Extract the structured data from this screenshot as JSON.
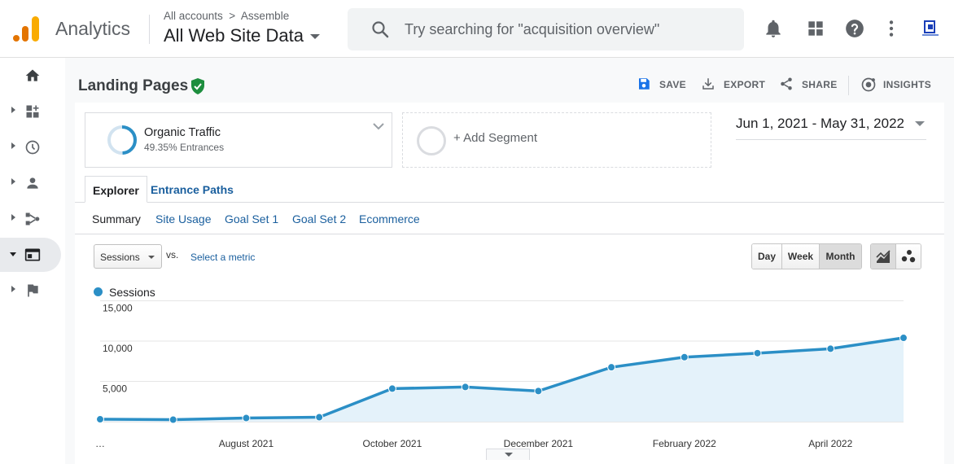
{
  "header": {
    "app_name": "Analytics",
    "breadcrumb": "All accounts  >  Assemble",
    "property_name": "All Web Site Data",
    "search_placeholder": "Try searching for \"acquisition overview\"",
    "icons": [
      "notifications-icon",
      "apps-grid-icon",
      "help-icon",
      "more-vert-icon",
      "account-avatar-icon"
    ]
  },
  "sidebar": {
    "items": [
      {
        "name": "home",
        "icon": "home-icon"
      },
      {
        "name": "customization",
        "icon": "dashboard-add-icon"
      },
      {
        "name": "realtime",
        "icon": "clock-icon"
      },
      {
        "name": "audience",
        "icon": "person-icon"
      },
      {
        "name": "acquisition",
        "icon": "acquisition-icon"
      },
      {
        "name": "behavior",
        "icon": "behavior-window-icon",
        "active": true
      },
      {
        "name": "conversions",
        "icon": "flag-icon"
      }
    ]
  },
  "page": {
    "title": "Landing Pages",
    "actions": [
      {
        "label": "SAVE",
        "icon": "save-icon"
      },
      {
        "label": "EXPORT",
        "icon": "export-icon"
      },
      {
        "label": "SHARE",
        "icon": "share-icon"
      },
      {
        "label": "INSIGHTS",
        "icon": "insights-icon"
      }
    ]
  },
  "segments": {
    "active": {
      "name": "Organic Traffic",
      "detail": "49.35% Entrances"
    },
    "add_label": "+ Add Segment"
  },
  "date_range": "Jun 1, 2021 - May 31, 2022",
  "tabs": [
    {
      "label": "Explorer",
      "active": true
    },
    {
      "label": "Entrance Paths",
      "active": false
    }
  ],
  "subtabs": [
    {
      "label": "Summary",
      "current": true
    },
    {
      "label": "Site Usage",
      "current": false
    },
    {
      "label": "Goal Set 1",
      "current": false
    },
    {
      "label": "Goal Set 2",
      "current": false
    },
    {
      "label": "Ecommerce",
      "current": false
    }
  ],
  "controls": {
    "metric_selected": "Sessions",
    "vs_label": "vs.",
    "select_metric_link": "Select a metric",
    "granularity": [
      {
        "label": "Day",
        "selected": false
      },
      {
        "label": "Week",
        "selected": false
      },
      {
        "label": "Month",
        "selected": true
      }
    ]
  },
  "chart_data": {
    "type": "area",
    "series": [
      {
        "name": "Sessions",
        "color": "#2b8fc6",
        "values": [
          300,
          250,
          450,
          550,
          4100,
          4300,
          3800,
          6750,
          8000,
          8500,
          9050,
          10400
        ]
      }
    ],
    "x": [
      "Jun 2021",
      "Jul 2021",
      "Aug 2021",
      "Sep 2021",
      "Oct 2021",
      "Nov 2021",
      "Dec 2021",
      "Jan 2022",
      "Feb 2022",
      "Mar 2022",
      "Apr 2022",
      "May 2022"
    ],
    "x_tick_labels": [
      "…",
      "August 2021",
      "October 2021",
      "December 2021",
      "February 2022",
      "April 2022"
    ],
    "y_tick_labels": [
      "15,000",
      "10,000",
      "5,000"
    ],
    "y_ticks": [
      15000,
      10000,
      5000
    ],
    "ylim": [
      0,
      15000
    ],
    "legend": "top-left",
    "grid": true
  }
}
